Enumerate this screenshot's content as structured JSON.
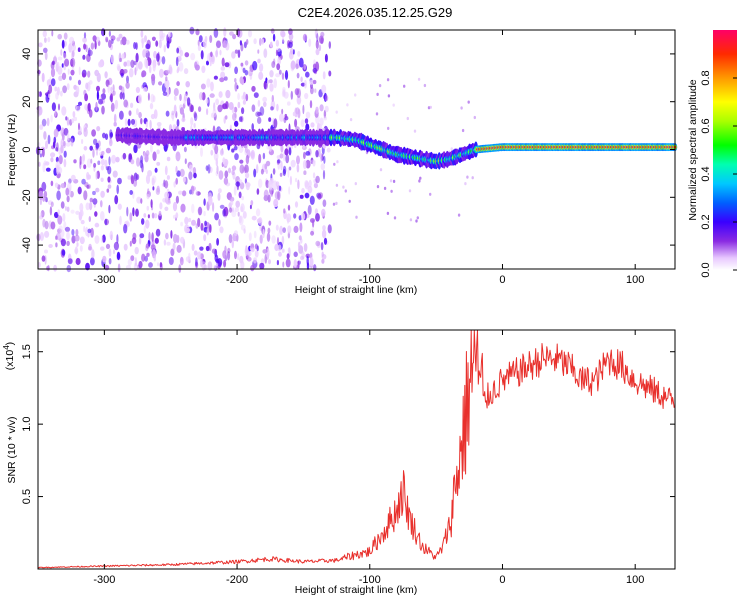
{
  "title": "C2E4.2026.035.12.25.G29",
  "chart_data": [
    {
      "type": "heatmap",
      "xlabel": "Height of straight line (km)",
      "ylabel": "Frequency (Hz)",
      "xlim": [
        -350,
        130
      ],
      "ylim": [
        -50,
        50
      ],
      "xticks": [
        -300,
        -200,
        -100,
        0,
        100
      ],
      "xtick_labels": [
        "-300",
        "-200",
        "-100",
        "0",
        "100"
      ],
      "yticks": [
        -40,
        -20,
        0,
        20,
        40
      ],
      "ytick_labels": [
        "-40",
        "-20",
        "0",
        "20",
        "40"
      ],
      "noise_region_x": [
        -350,
        -130
      ],
      "ridge": [
        {
          "x": -290,
          "y": 6
        },
        {
          "x": -270,
          "y": 5.5
        },
        {
          "x": -250,
          "y": 5
        },
        {
          "x": -240,
          "y": 5
        },
        {
          "x": -220,
          "y": 5
        },
        {
          "x": -200,
          "y": 5
        },
        {
          "x": -180,
          "y": 5
        },
        {
          "x": -160,
          "y": 5
        },
        {
          "x": -140,
          "y": 5
        },
        {
          "x": -125,
          "y": 5
        },
        {
          "x": -110,
          "y": 4
        },
        {
          "x": -100,
          "y": 2
        },
        {
          "x": -90,
          "y": 0
        },
        {
          "x": -80,
          "y": -2
        },
        {
          "x": -70,
          "y": -3
        },
        {
          "x": -60,
          "y": -4
        },
        {
          "x": -50,
          "y": -5
        },
        {
          "x": -40,
          "y": -4
        },
        {
          "x": -30,
          "y": -2
        },
        {
          "x": -20,
          "y": 0
        },
        {
          "x": 0,
          "y": 1
        },
        {
          "x": 50,
          "y": 1
        },
        {
          "x": 100,
          "y": 1
        },
        {
          "x": 130,
          "y": 1
        }
      ],
      "colorbar": {
        "label": "Normalized spectral amplitude",
        "range": [
          0,
          1
        ],
        "ticks": [
          0.0,
          0.2,
          0.4,
          0.6,
          0.8
        ],
        "tick_labels": [
          "0.0",
          "0.2",
          "0.4",
          "0.6",
          "0.8"
        ]
      }
    },
    {
      "type": "line",
      "xlabel": "Height of straight line (km)",
      "ylabel": "SNR (10 * v/v)",
      "scale_note": "(x10",
      "scale_exp": "4",
      "xlim": [
        -350,
        130
      ],
      "ylim": [
        0,
        16500
      ],
      "xticks": [
        -300,
        -200,
        -100,
        0,
        100
      ],
      "xtick_labels": [
        "-300",
        "-200",
        "-100",
        "0",
        "100"
      ],
      "yticks": [
        5000,
        10000,
        15000
      ],
      "ytick_labels": [
        "0.5",
        "1.0",
        "1.5"
      ],
      "series": [
        {
          "color": "#e8302c",
          "x": [
            -350,
            -300,
            -250,
            -200,
            -175,
            -150,
            -125,
            -110,
            -100,
            -90,
            -80,
            -75,
            -70,
            -60,
            -50,
            -45,
            -40,
            -35,
            -30,
            -27,
            -25,
            -22,
            -20,
            -18,
            -15,
            -10,
            0,
            10,
            20,
            30,
            40,
            50,
            60,
            70,
            80,
            90,
            100,
            110,
            120,
            130
          ],
          "y": [
            100,
            200,
            300,
            500,
            700,
            500,
            600,
            1000,
            1200,
            2500,
            4000,
            5500,
            3500,
            1500,
            800,
            1500,
            3000,
            6000,
            9000,
            11000,
            13000,
            13500,
            16500,
            13000,
            11500,
            12000,
            13000,
            13500,
            14000,
            14500,
            14500,
            14000,
            13000,
            13000,
            14500,
            14000,
            13000,
            12500,
            12000,
            11500
          ]
        }
      ]
    }
  ]
}
